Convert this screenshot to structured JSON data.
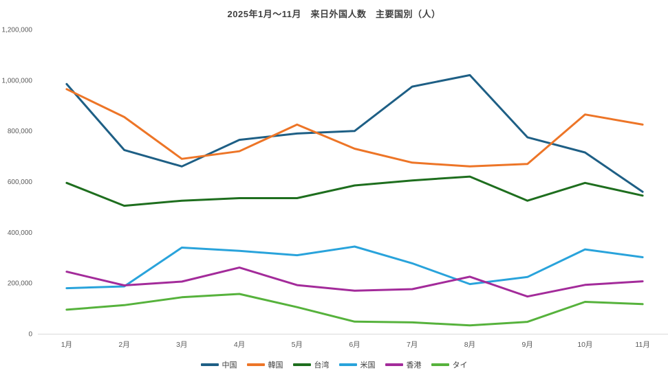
{
  "title": "2025年1月～11月　来日外国人数　主要国別（人）",
  "chart_data": {
    "type": "line",
    "title": "2025年1月～11月　来日外国人数　主要国別（人）",
    "categories": [
      "1月",
      "2月",
      "3月",
      "4月",
      "5月",
      "6月",
      "7月",
      "8月",
      "9月",
      "10月",
      "11月"
    ],
    "series": [
      {
        "name": "中国",
        "color": "#1e5f85",
        "values": [
          985000,
          725000,
          660000,
          765000,
          790000,
          800000,
          975000,
          1020000,
          775000,
          715000,
          560000
        ]
      },
      {
        "name": "韓国",
        "color": "#ed7527",
        "values": [
          965000,
          855000,
          690000,
          720000,
          825000,
          730000,
          675000,
          660000,
          670000,
          865000,
          825000
        ]
      },
      {
        "name": "台湾",
        "color": "#1e6e1e",
        "values": [
          595000,
          505000,
          525000,
          535000,
          535000,
          585000,
          605000,
          620000,
          525000,
          595000,
          545000
        ]
      },
      {
        "name": "米国",
        "color": "#29a3db",
        "values": [
          180000,
          187000,
          340000,
          327000,
          310000,
          344000,
          278000,
          196000,
          224000,
          333000,
          302000
        ]
      },
      {
        "name": "香港",
        "color": "#a32b9a",
        "values": [
          245000,
          191000,
          206000,
          261000,
          192000,
          170000,
          176000,
          225000,
          147000,
          193000,
          207000
        ]
      },
      {
        "name": "タイ",
        "color": "#56b23c",
        "values": [
          95000,
          113000,
          144000,
          157000,
          105000,
          48000,
          45000,
          33000,
          47000,
          126000,
          117000
        ]
      }
    ],
    "ylim": [
      0,
      1200000
    ],
    "ytick_step": 200000,
    "ytick_labels": [
      "0",
      "200,000",
      "400,000",
      "600,000",
      "800,000",
      "1,000,000",
      "1,200,000"
    ],
    "grid": false,
    "legend_position": "bottom"
  },
  "style": {
    "axis_line_color": "#d9d9d9",
    "tick_label_color": "#595959",
    "title_color": "#404040",
    "background": "#ffffff",
    "line_width": 3
  }
}
